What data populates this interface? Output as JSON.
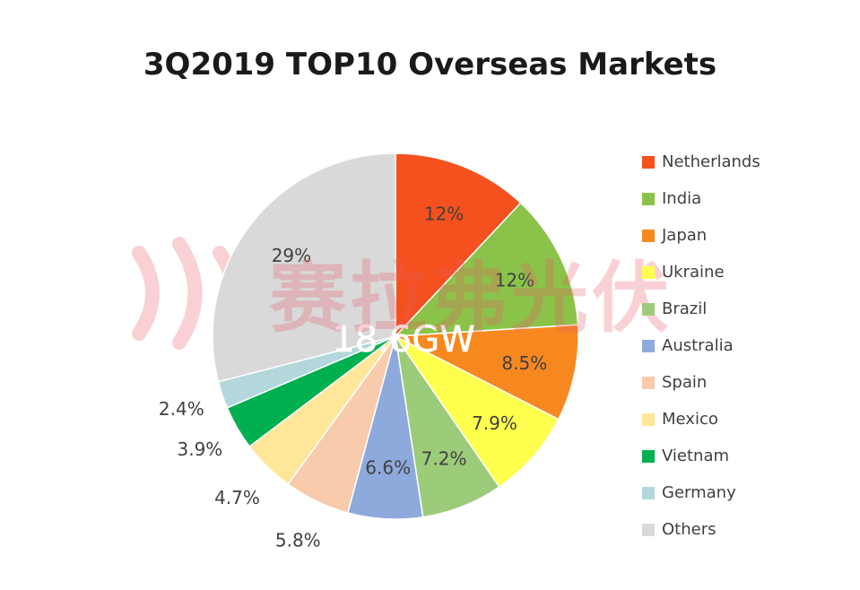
{
  "chart_data": {
    "type": "pie",
    "title": "3Q2019 TOP10 Overseas Markets",
    "center_label": "18.6GW",
    "watermark_text": "赛拉弗光伏",
    "legend_position": "right",
    "slices": [
      {
        "name": "Netherlands",
        "value": 12,
        "label": "12%",
        "color": "#F4511E"
      },
      {
        "name": "India",
        "value": 12,
        "label": "12%",
        "color": "#8BC34A"
      },
      {
        "name": "Japan",
        "value": 8.5,
        "label": "8.5%",
        "color": "#F7881F"
      },
      {
        "name": "Ukraine",
        "value": 7.9,
        "label": "7.9%",
        "color": "#FFFF4D"
      },
      {
        "name": "Brazil",
        "value": 7.2,
        "label": "7.2%",
        "color": "#9CCB7A"
      },
      {
        "name": "Australia",
        "value": 6.6,
        "label": "6.6%",
        "color": "#8EA9DB"
      },
      {
        "name": "Spain",
        "value": 5.8,
        "label": "5.8%",
        "color": "#F8CBAD"
      },
      {
        "name": "Mexico",
        "value": 4.7,
        "label": "4.7%",
        "color": "#FFE699"
      },
      {
        "name": "Vietnam",
        "value": 3.9,
        "label": "3.9%",
        "color": "#00B050"
      },
      {
        "name": "Germany",
        "value": 2.4,
        "label": "2.4%",
        "color": "#B4D7DC"
      },
      {
        "name": "Others",
        "value": 29,
        "label": "29%",
        "color": "#D9D9D9"
      }
    ]
  }
}
